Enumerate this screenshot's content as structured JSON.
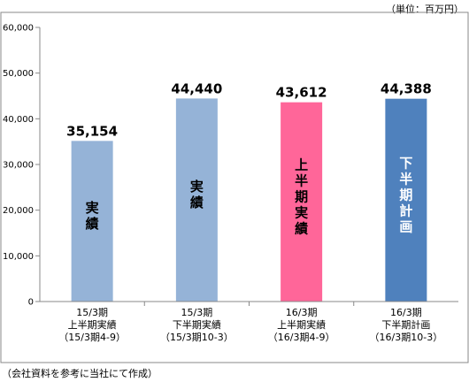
{
  "unit_label": "（単位：百万円）",
  "source_note": "（会社資料を参考に当社にて作成）",
  "chart_data": {
    "type": "bar",
    "ylim": [
      0,
      60000
    ],
    "yticks": [
      "0",
      "10,000",
      "20,000",
      "30,000",
      "40,000",
      "50,000",
      "60,000"
    ],
    "ytick_values": [
      0,
      10000,
      20000,
      30000,
      40000,
      50000,
      60000
    ],
    "grid": false,
    "categories": [
      [
        "15/3期",
        "上半期実績",
        "（15/3期4-9）"
      ],
      [
        "15/3期",
        "下半期実績",
        "（15/3期10-3）"
      ],
      [
        "16/3期",
        "上半期実績",
        "（16/3期4-9）"
      ],
      [
        "16/3期",
        "下半期計画",
        "（16/3期10-3）"
      ]
    ],
    "values": [
      35154,
      44440,
      43612,
      44388
    ],
    "value_labels": [
      "35,154",
      "44,440",
      "43,612",
      "44,388"
    ],
    "bar_labels": [
      "実績",
      "実績",
      "上半期実績",
      "下半期計画"
    ],
    "bar_label_colors": [
      "#000000",
      "#000000",
      "#000000",
      "#ffffff"
    ],
    "colors": [
      "#95b3d7",
      "#95b3d7",
      "#ff6699",
      "#4f81bd"
    ]
  }
}
